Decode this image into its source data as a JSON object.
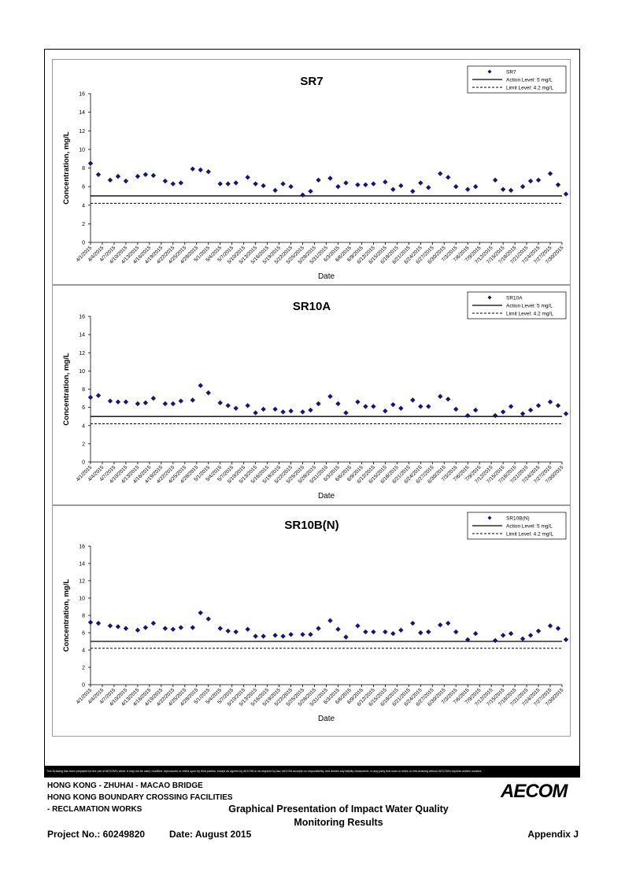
{
  "chart_data": [
    {
      "type": "scatter",
      "title": "SR7",
      "xlabel": "Date",
      "ylabel": "Concentration, mg/L",
      "ylim": [
        0,
        16
      ],
      "yticks": [
        "0",
        "2",
        "4",
        "6",
        "8",
        "10",
        "12",
        "14",
        "16"
      ],
      "xticks": [
        "4/1/2015",
        "4/4/2015",
        "4/7/2015",
        "4/10/2015",
        "4/13/2015",
        "4/16/2015",
        "4/19/2015",
        "4/22/2015",
        "4/25/2015",
        "4/28/2015",
        "5/1/2015",
        "5/4/2015",
        "5/7/2015",
        "5/10/2015",
        "5/13/2015",
        "5/16/2015",
        "5/19/2015",
        "5/22/2015",
        "5/25/2015",
        "5/28/2015",
        "5/31/2015",
        "6/3/2015",
        "6/6/2015",
        "6/9/2015",
        "6/12/2015",
        "6/15/2015",
        "6/18/2015",
        "6/21/2015",
        "6/24/2015",
        "6/27/2015",
        "6/30/2015",
        "7/3/2015",
        "7/6/2015",
        "7/9/2015",
        "7/12/2015",
        "7/15/2015",
        "7/18/2015",
        "7/21/2015",
        "7/24/2015",
        "7/27/2015",
        "7/30/2015"
      ],
      "legend": {
        "position": "top-right",
        "entries": [
          "SR7",
          "Action Level: 5 mg/L",
          "Limit Level: 4.2 mg/L"
        ]
      },
      "action_level": 5,
      "limit_level": 4.2,
      "series_name": "SR7",
      "color": "#14147a",
      "points": [
        [
          "4/1/2015",
          8.5
        ],
        [
          "4/3/2015",
          7.3
        ],
        [
          "4/6/2015",
          6.7
        ],
        [
          "4/8/2015",
          7.1
        ],
        [
          "4/10/2015",
          6.6
        ],
        [
          "4/13/2015",
          7.1
        ],
        [
          "4/15/2015",
          7.3
        ],
        [
          "4/17/2015",
          7.2
        ],
        [
          "4/20/2015",
          6.6
        ],
        [
          "4/22/2015",
          6.3
        ],
        [
          "4/24/2015",
          6.4
        ],
        [
          "4/27/2015",
          7.9
        ],
        [
          "4/29/2015",
          7.8
        ],
        [
          "5/1/2015",
          7.6
        ],
        [
          "5/4/2015",
          6.3
        ],
        [
          "5/6/2015",
          6.3
        ],
        [
          "5/8/2015",
          6.4
        ],
        [
          "5/11/2015",
          7.0
        ],
        [
          "5/13/2015",
          6.3
        ],
        [
          "5/15/2015",
          6.1
        ],
        [
          "5/18/2015",
          5.6
        ],
        [
          "5/20/2015",
          6.3
        ],
        [
          "5/22/2015",
          6.0
        ],
        [
          "5/25/2015",
          5.1
        ],
        [
          "5/27/2015",
          5.5
        ],
        [
          "5/29/2015",
          6.7
        ],
        [
          "6/1/2015",
          6.9
        ],
        [
          "6/3/2015",
          6.0
        ],
        [
          "6/5/2015",
          6.4
        ],
        [
          "6/8/2015",
          6.2
        ],
        [
          "6/10/2015",
          6.2
        ],
        [
          "6/12/2015",
          6.3
        ],
        [
          "6/15/2015",
          6.5
        ],
        [
          "6/17/2015",
          5.7
        ],
        [
          "6/19/2015",
          6.1
        ],
        [
          "6/22/2015",
          5.5
        ],
        [
          "6/24/2015",
          6.4
        ],
        [
          "6/26/2015",
          5.9
        ],
        [
          "6/29/2015",
          7.4
        ],
        [
          "7/1/2015",
          7.0
        ],
        [
          "7/3/2015",
          6.0
        ],
        [
          "7/6/2015",
          5.7
        ],
        [
          "7/8/2015",
          6.0
        ],
        [
          "7/13/2015",
          6.7
        ],
        [
          "7/15/2015",
          5.7
        ],
        [
          "7/17/2015",
          5.6
        ],
        [
          "7/20/2015",
          6.0
        ],
        [
          "7/22/2015",
          6.6
        ],
        [
          "7/24/2015",
          6.7
        ],
        [
          "7/27/2015",
          7.4
        ],
        [
          "7/29/2015",
          6.2
        ],
        [
          "7/31/2015",
          5.2
        ]
      ]
    },
    {
      "type": "scatter",
      "title": "SR10A",
      "xlabel": "Date",
      "ylabel": "Concentration, mg/L",
      "ylim": [
        0,
        16
      ],
      "yticks": [
        "0",
        "2",
        "4",
        "6",
        "8",
        "10",
        "12",
        "14",
        "16"
      ],
      "xticks": [
        "4/1/2015",
        "4/4/2015",
        "4/7/2015",
        "4/10/2015",
        "4/13/2015",
        "4/16/2015",
        "4/19/2015",
        "4/22/2015",
        "4/25/2015",
        "4/28/2015",
        "5/1/2015",
        "5/4/2015",
        "5/7/2015",
        "5/10/2015",
        "5/13/2015",
        "5/16/2015",
        "5/19/2015",
        "5/22/2015",
        "5/25/2015",
        "5/28/2015",
        "5/31/2015",
        "6/3/2015",
        "6/6/2015",
        "6/9/2015",
        "6/12/2015",
        "6/15/2015",
        "6/18/2015",
        "6/21/2015",
        "6/24/2015",
        "6/27/2015",
        "6/30/2015",
        "7/3/2015",
        "7/6/2015",
        "7/9/2015",
        "7/12/2015",
        "7/15/2015",
        "7/18/2015",
        "7/21/2015",
        "7/24/2015",
        "7/27/2015",
        "7/30/2015"
      ],
      "legend": {
        "position": "top-right",
        "entries": [
          "SR10A",
          "Action Level: 5 mg/L",
          "Limit Level: 4.2 mg/L"
        ]
      },
      "action_level": 5,
      "limit_level": 4.2,
      "series_name": "SR10A",
      "color": "#14147a",
      "points": [
        [
          "4/1/2015",
          7.1
        ],
        [
          "4/3/2015",
          7.3
        ],
        [
          "4/6/2015",
          6.7
        ],
        [
          "4/8/2015",
          6.6
        ],
        [
          "4/10/2015",
          6.6
        ],
        [
          "4/13/2015",
          6.4
        ],
        [
          "4/15/2015",
          6.5
        ],
        [
          "4/17/2015",
          7.0
        ],
        [
          "4/20/2015",
          6.4
        ],
        [
          "4/22/2015",
          6.4
        ],
        [
          "4/24/2015",
          6.7
        ],
        [
          "4/27/2015",
          6.8
        ],
        [
          "4/29/2015",
          8.4
        ],
        [
          "5/1/2015",
          7.6
        ],
        [
          "5/4/2015",
          6.5
        ],
        [
          "5/6/2015",
          6.2
        ],
        [
          "5/8/2015",
          5.9
        ],
        [
          "5/11/2015",
          6.2
        ],
        [
          "5/13/2015",
          5.4
        ],
        [
          "5/15/2015",
          5.8
        ],
        [
          "5/18/2015",
          5.8
        ],
        [
          "5/20/2015",
          5.5
        ],
        [
          "5/22/2015",
          5.6
        ],
        [
          "5/25/2015",
          5.5
        ],
        [
          "5/27/2015",
          5.7
        ],
        [
          "5/29/2015",
          6.4
        ],
        [
          "6/1/2015",
          7.2
        ],
        [
          "6/3/2015",
          6.4
        ],
        [
          "6/5/2015",
          5.4
        ],
        [
          "6/8/2015",
          6.6
        ],
        [
          "6/10/2015",
          6.1
        ],
        [
          "6/12/2015",
          6.1
        ],
        [
          "6/15/2015",
          5.6
        ],
        [
          "6/17/2015",
          6.3
        ],
        [
          "6/19/2015",
          5.9
        ],
        [
          "6/22/2015",
          6.8
        ],
        [
          "6/24/2015",
          6.1
        ],
        [
          "6/26/2015",
          6.1
        ],
        [
          "6/29/2015",
          7.2
        ],
        [
          "7/1/2015",
          6.9
        ],
        [
          "7/3/2015",
          5.8
        ],
        [
          "7/6/2015",
          5.1
        ],
        [
          "7/8/2015",
          5.7
        ],
        [
          "7/13/2015",
          5.1
        ],
        [
          "7/15/2015",
          5.5
        ],
        [
          "7/17/2015",
          6.1
        ],
        [
          "7/20/2015",
          5.3
        ],
        [
          "7/22/2015",
          5.7
        ],
        [
          "7/24/2015",
          6.2
        ],
        [
          "7/27/2015",
          6.6
        ],
        [
          "7/29/2015",
          6.2
        ],
        [
          "7/31/2015",
          5.3
        ]
      ]
    },
    {
      "type": "scatter",
      "title": "SR10B(N)",
      "xlabel": "Date",
      "ylabel": "Concentration, mg/L",
      "ylim": [
        0,
        16
      ],
      "yticks": [
        "0",
        "2",
        "4",
        "6",
        "8",
        "10",
        "12",
        "14",
        "16"
      ],
      "xticks": [
        "4/1/2015",
        "4/4/2015",
        "4/7/2015",
        "4/10/2015",
        "4/13/2015",
        "4/16/2015",
        "4/19/2015",
        "4/22/2015",
        "4/25/2015",
        "4/28/2015",
        "5/1/2015",
        "5/4/2015",
        "5/7/2015",
        "5/10/2015",
        "5/13/2015",
        "5/16/2015",
        "5/19/2015",
        "5/22/2015",
        "5/25/2015",
        "5/28/2015",
        "5/31/2015",
        "6/3/2015",
        "6/6/2015",
        "6/9/2015",
        "6/12/2015",
        "6/15/2015",
        "6/18/2015",
        "6/21/2015",
        "6/24/2015",
        "6/27/2015",
        "6/30/2015",
        "7/3/2015",
        "7/6/2015",
        "7/9/2015",
        "7/12/2015",
        "7/15/2015",
        "7/18/2015",
        "7/21/2015",
        "7/24/2015",
        "7/27/2015",
        "7/30/2015"
      ],
      "legend": {
        "position": "top-right",
        "entries": [
          "SR10B(N)",
          "Action Level: 5 mg/L",
          "Limit Level: 4.2 mg/L"
        ]
      },
      "action_level": 5,
      "limit_level": 4.2,
      "series_name": "SR10B(N)",
      "color": "#14147a",
      "points": [
        [
          "4/1/2015",
          7.2
        ],
        [
          "4/3/2015",
          7.1
        ],
        [
          "4/6/2015",
          6.8
        ],
        [
          "4/8/2015",
          6.7
        ],
        [
          "4/10/2015",
          6.5
        ],
        [
          "4/13/2015",
          6.3
        ],
        [
          "4/15/2015",
          6.6
        ],
        [
          "4/17/2015",
          7.1
        ],
        [
          "4/20/2015",
          6.5
        ],
        [
          "4/22/2015",
          6.4
        ],
        [
          "4/24/2015",
          6.6
        ],
        [
          "4/27/2015",
          6.6
        ],
        [
          "4/29/2015",
          8.3
        ],
        [
          "5/1/2015",
          7.6
        ],
        [
          "5/4/2015",
          6.5
        ],
        [
          "5/6/2015",
          6.2
        ],
        [
          "5/8/2015",
          6.1
        ],
        [
          "5/11/2015",
          6.4
        ],
        [
          "5/13/2015",
          5.6
        ],
        [
          "5/15/2015",
          5.6
        ],
        [
          "5/18/2015",
          5.7
        ],
        [
          "5/20/2015",
          5.6
        ],
        [
          "5/22/2015",
          5.8
        ],
        [
          "5/25/2015",
          5.8
        ],
        [
          "5/27/2015",
          5.8
        ],
        [
          "5/29/2015",
          6.5
        ],
        [
          "6/1/2015",
          7.4
        ],
        [
          "6/3/2015",
          6.4
        ],
        [
          "6/5/2015",
          5.5
        ],
        [
          "6/8/2015",
          6.8
        ],
        [
          "6/10/2015",
          6.1
        ],
        [
          "6/12/2015",
          6.1
        ],
        [
          "6/15/2015",
          6.1
        ],
        [
          "6/17/2015",
          5.9
        ],
        [
          "6/19/2015",
          6.3
        ],
        [
          "6/22/2015",
          7.1
        ],
        [
          "6/24/2015",
          6.0
        ],
        [
          "6/26/2015",
          6.1
        ],
        [
          "6/29/2015",
          6.9
        ],
        [
          "7/1/2015",
          7.1
        ],
        [
          "7/3/2015",
          6.1
        ],
        [
          "7/6/2015",
          5.2
        ],
        [
          "7/8/2015",
          5.9
        ],
        [
          "7/13/2015",
          5.1
        ],
        [
          "7/15/2015",
          5.7
        ],
        [
          "7/17/2015",
          5.9
        ],
        [
          "7/20/2015",
          5.3
        ],
        [
          "7/22/2015",
          5.7
        ],
        [
          "7/24/2015",
          6.2
        ],
        [
          "7/27/2015",
          6.8
        ],
        [
          "7/29/2015",
          6.5
        ],
        [
          "7/31/2015",
          5.2
        ]
      ]
    }
  ],
  "footer": {
    "disclaimer": "This Drawing has been prepared for the use of AECOM's client. It may not be used, modified, reproduced or relied upon by third parties, except as agreed by AECOM or as required by law. AECOM accepts no responsibility, and denies any liability whatsoever, to any party that uses or relies on this drawing without AECOM's express written consent.",
    "company_line1": "HONG KONG - ZHUHAI - MACAO BRIDGE",
    "company_line2": "HONG KONG BOUNDARY CROSSING FACILITIES",
    "company_line3": "- RECLAMATION WORKS",
    "title_line1": "Graphical Presentation of Impact Water Quality",
    "title_line2": "Monitoring Results",
    "project_no": "Project No.: 60249820",
    "date": "Date: August 2015",
    "appendix": "Appendix J",
    "logo": "AECOM"
  }
}
